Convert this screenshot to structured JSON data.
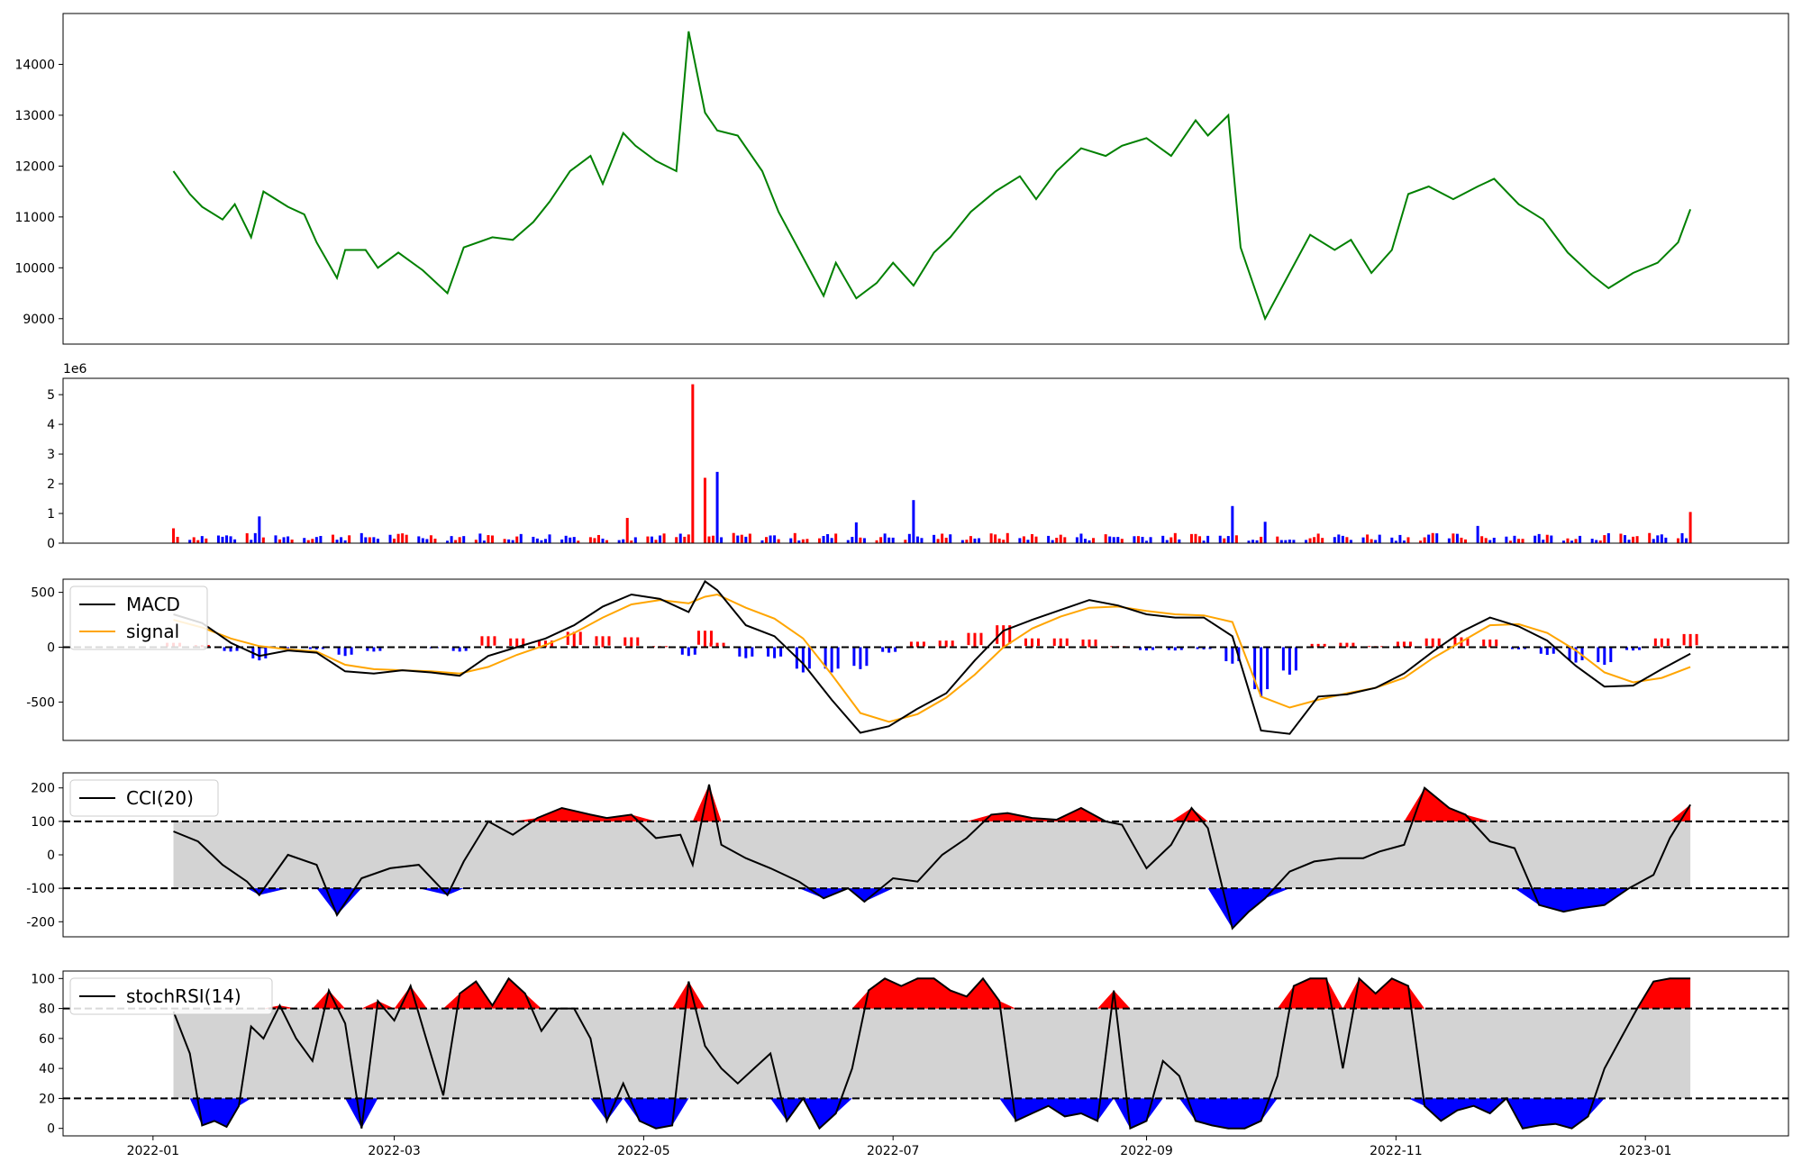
{
  "chart_data": [
    {
      "type": "line",
      "panel": "price",
      "yticks": [
        9000,
        10000,
        11000,
        12000,
        13000,
        14000
      ],
      "ylim": [
        8500,
        15000
      ],
      "color": "#008000",
      "series": [
        {
          "x": [
            "2022-01-06",
            "2022-01-10",
            "2022-01-13",
            "2022-01-18",
            "2022-01-21",
            "2022-01-25",
            "2022-01-28",
            "2022-02-03",
            "2022-02-07",
            "2022-02-10",
            "2022-02-15",
            "2022-02-17",
            "2022-02-22",
            "2022-02-25",
            "2022-03-02",
            "2022-03-08",
            "2022-03-14",
            "2022-03-18",
            "2022-03-25",
            "2022-03-30",
            "2022-04-04",
            "2022-04-08",
            "2022-04-13",
            "2022-04-18",
            "2022-04-21",
            "2022-04-26",
            "2022-04-29",
            "2022-05-04",
            "2022-05-09",
            "2022-05-12",
            "2022-05-16",
            "2022-05-19",
            "2022-05-24",
            "2022-05-30",
            "2022-06-03",
            "2022-06-09",
            "2022-06-14",
            "2022-06-17",
            "2022-06-22",
            "2022-06-27",
            "2022-07-01",
            "2022-07-06",
            "2022-07-11",
            "2022-07-15",
            "2022-07-20",
            "2022-07-26",
            "2022-08-01",
            "2022-08-05",
            "2022-08-10",
            "2022-08-16",
            "2022-08-22",
            "2022-08-26",
            "2022-09-01",
            "2022-09-07",
            "2022-09-13",
            "2022-09-16",
            "2022-09-21",
            "2022-09-24",
            "2022-09-30",
            "2022-10-05",
            "2022-10-11",
            "2022-10-17",
            "2022-10-21",
            "2022-10-26",
            "2022-10-31",
            "2022-11-04",
            "2022-11-09",
            "2022-11-15",
            "2022-11-21",
            "2022-11-25",
            "2022-12-01",
            "2022-12-07",
            "2022-12-13",
            "2022-12-19",
            "2022-12-23",
            "2022-12-29",
            "2023-01-04",
            "2023-01-09",
            "2023-01-12"
          ],
          "y": [
            11900,
            11450,
            11200,
            10950,
            11250,
            10600,
            11500,
            11200,
            11050,
            10500,
            9800,
            10350,
            10350,
            10000,
            10300,
            9950,
            9500,
            10400,
            10600,
            10550,
            10900,
            11300,
            11900,
            12200,
            11650,
            12650,
            12400,
            12100,
            11900,
            14650,
            13050,
            12700,
            12600,
            11900,
            11100,
            10200,
            9450,
            10100,
            9400,
            9700,
            10100,
            9650,
            10300,
            10600,
            11100,
            11500,
            11800,
            11350,
            11900,
            12350,
            12200,
            12400,
            12550,
            12200,
            12900,
            12600,
            13000,
            10400,
            9000,
            9750,
            10650,
            10350,
            10550,
            9900,
            10350,
            11450,
            11600,
            11350,
            11600,
            11750,
            11250,
            10950,
            10300,
            9850,
            9600,
            9900,
            10100,
            10500,
            11150
          ]
        }
      ]
    },
    {
      "type": "bar",
      "panel": "volume",
      "yticks": [
        0,
        1,
        2,
        3,
        4,
        5
      ],
      "scale_label": "1e6",
      "ylim": [
        0,
        5.55
      ],
      "colors": {
        "up": "#ff0000",
        "down": "#0000ff"
      },
      "peaks": [
        {
          "x": "2022-01-06",
          "value": 0.5,
          "dir": "up"
        },
        {
          "x": "2022-01-27",
          "value": 0.9,
          "dir": "down"
        },
        {
          "x": "2022-04-27",
          "value": 0.85,
          "dir": "up"
        },
        {
          "x": "2022-05-13",
          "value": 5.35,
          "dir": "up"
        },
        {
          "x": "2022-05-16",
          "value": 2.2,
          "dir": "up"
        },
        {
          "x": "2022-05-19",
          "value": 2.4,
          "dir": "down"
        },
        {
          "x": "2022-06-22",
          "value": 0.7,
          "dir": "down"
        },
        {
          "x": "2022-07-06",
          "value": 1.45,
          "dir": "down"
        },
        {
          "x": "2022-09-22",
          "value": 1.25,
          "dir": "down"
        },
        {
          "x": "2022-09-30",
          "value": 0.72,
          "dir": "down"
        },
        {
          "x": "2022-11-21",
          "value": 0.58,
          "dir": "down"
        },
        {
          "x": "2023-01-12",
          "value": 1.05,
          "dir": "up"
        }
      ],
      "baseline_range": [
        0.08,
        0.35
      ]
    },
    {
      "type": "line",
      "panel": "macd",
      "yticks": [
        -500,
        0,
        500
      ],
      "ylim": [
        -850,
        620
      ],
      "legend": [
        "MACD",
        "signal"
      ],
      "colors": {
        "macd": "#000000",
        "signal": "#ffa500",
        "hist_up": "#ff0000",
        "hist_down": "#0000ff"
      },
      "x": [
        "2022-01-06",
        "2022-01-13",
        "2022-01-20",
        "2022-01-27",
        "2022-02-03",
        "2022-02-10",
        "2022-02-17",
        "2022-02-24",
        "2022-03-03",
        "2022-03-10",
        "2022-03-17",
        "2022-03-24",
        "2022-03-31",
        "2022-04-07",
        "2022-04-14",
        "2022-04-21",
        "2022-04-28",
        "2022-05-05",
        "2022-05-12",
        "2022-05-16",
        "2022-05-19",
        "2022-05-26",
        "2022-06-02",
        "2022-06-09",
        "2022-06-16",
        "2022-06-23",
        "2022-06-30",
        "2022-07-07",
        "2022-07-14",
        "2022-07-21",
        "2022-07-28",
        "2022-08-04",
        "2022-08-11",
        "2022-08-18",
        "2022-08-25",
        "2022-09-01",
        "2022-09-08",
        "2022-09-15",
        "2022-09-22",
        "2022-09-29",
        "2022-10-06",
        "2022-10-13",
        "2022-10-20",
        "2022-10-27",
        "2022-11-03",
        "2022-11-10",
        "2022-11-17",
        "2022-11-24",
        "2022-12-01",
        "2022-12-08",
        "2022-12-15",
        "2022-12-22",
        "2022-12-29",
        "2023-01-05",
        "2023-01-12"
      ],
      "macd": [
        300,
        220,
        40,
        -80,
        -30,
        -50,
        -220,
        -240,
        -210,
        -230,
        -260,
        -80,
        0,
        80,
        200,
        370,
        480,
        440,
        320,
        600,
        520,
        200,
        100,
        -150,
        -480,
        -780,
        -720,
        -560,
        -420,
        -120,
        150,
        250,
        340,
        430,
        380,
        300,
        270,
        270,
        100,
        -760,
        -790,
        -450,
        -430,
        -370,
        -240,
        -40,
        140,
        270,
        190,
        60,
        -170,
        -360,
        -350,
        -200,
        -60
      ],
      "signal": [
        250,
        180,
        80,
        10,
        -20,
        -40,
        -160,
        -200,
        -210,
        -220,
        -240,
        -180,
        -70,
        20,
        130,
        270,
        390,
        430,
        400,
        460,
        480,
        360,
        260,
        80,
        -250,
        -600,
        -680,
        -610,
        -460,
        -250,
        0,
        170,
        280,
        360,
        370,
        330,
        300,
        290,
        230,
        -450,
        -550,
        -480,
        -420,
        -370,
        -280,
        -100,
        50,
        200,
        210,
        130,
        -30,
        -230,
        -320,
        -280,
        -180
      ],
      "hist": [
        40,
        20,
        -40,
        -120,
        -10,
        -20,
        -80,
        -40,
        0,
        -10,
        -40,
        100,
        80,
        60,
        140,
        100,
        90,
        10,
        -80,
        150,
        40,
        -100,
        -100,
        -230,
        -230,
        -200,
        -50,
        50,
        60,
        130,
        200,
        80,
        80,
        70,
        10,
        -30,
        -30,
        -20,
        -150,
        -450,
        -250,
        30,
        40,
        10,
        50,
        80,
        90,
        70,
        -20,
        -70,
        -140,
        -160,
        -30,
        80,
        120
      ]
    },
    {
      "type": "area",
      "panel": "cci",
      "yticks": [
        -200,
        -100,
        0,
        100,
        200
      ],
      "ylim": [
        -245,
        245
      ],
      "legend": [
        "CCI(20)"
      ],
      "thresholds": [
        100,
        -100
      ],
      "colors": {
        "line": "#000000",
        "band": "#d3d3d3",
        "over": "#ff0000",
        "under": "#0000ff"
      },
      "x": [
        "2022-01-06",
        "2022-01-12",
        "2022-01-18",
        "2022-01-24",
        "2022-01-27",
        "2022-02-03",
        "2022-02-10",
        "2022-02-15",
        "2022-02-21",
        "2022-02-28",
        "2022-03-07",
        "2022-03-14",
        "2022-03-18",
        "2022-03-24",
        "2022-03-30",
        "2022-04-05",
        "2022-04-11",
        "2022-04-18",
        "2022-04-22",
        "2022-04-28",
        "2022-05-04",
        "2022-05-10",
        "2022-05-13",
        "2022-05-17",
        "2022-05-20",
        "2022-05-26",
        "2022-06-01",
        "2022-06-08",
        "2022-06-14",
        "2022-06-20",
        "2022-06-24",
        "2022-07-01",
        "2022-07-07",
        "2022-07-13",
        "2022-07-19",
        "2022-07-25",
        "2022-07-29",
        "2022-08-04",
        "2022-08-10",
        "2022-08-16",
        "2022-08-22",
        "2022-08-26",
        "2022-09-01",
        "2022-09-07",
        "2022-09-12",
        "2022-09-16",
        "2022-09-22",
        "2022-09-26",
        "2022-09-30",
        "2022-10-06",
        "2022-10-12",
        "2022-10-18",
        "2022-10-24",
        "2022-10-28",
        "2022-11-03",
        "2022-11-08",
        "2022-11-14",
        "2022-11-18",
        "2022-11-24",
        "2022-11-30",
        "2022-12-06",
        "2022-12-12",
        "2022-12-16",
        "2022-12-22",
        "2022-12-28",
        "2023-01-03",
        "2023-01-07",
        "2023-01-12"
      ],
      "y": [
        70,
        40,
        -30,
        -80,
        -120,
        0,
        -30,
        -180,
        -70,
        -40,
        -30,
        -120,
        -20,
        100,
        60,
        110,
        140,
        120,
        110,
        120,
        50,
        60,
        -30,
        210,
        30,
        -10,
        -40,
        -80,
        -130,
        -100,
        -140,
        -70,
        -80,
        0,
        50,
        120,
        125,
        110,
        105,
        140,
        100,
        90,
        -40,
        30,
        140,
        80,
        -220,
        -170,
        -130,
        -50,
        -20,
        -10,
        -10,
        10,
        30,
        200,
        140,
        120,
        40,
        20,
        -150,
        -170,
        -160,
        -150,
        -100,
        -60,
        50,
        150
      ]
    },
    {
      "type": "area",
      "panel": "stochrsi",
      "yticks": [
        0,
        20,
        40,
        60,
        80,
        100
      ],
      "ylim": [
        -5,
        105
      ],
      "legend": [
        "stochRSI(14)"
      ],
      "thresholds": [
        80,
        20
      ],
      "colors": {
        "line": "#000000",
        "band": "#d3d3d3",
        "over": "#ff0000",
        "under": "#0000ff"
      },
      "x": [
        "2022-01-06",
        "2022-01-10",
        "2022-01-13",
        "2022-01-16",
        "2022-01-19",
        "2022-01-22",
        "2022-01-25",
        "2022-01-28",
        "2022-02-01",
        "2022-02-05",
        "2022-02-09",
        "2022-02-13",
        "2022-02-17",
        "2022-02-21",
        "2022-02-25",
        "2022-03-01",
        "2022-03-05",
        "2022-03-09",
        "2022-03-13",
        "2022-03-17",
        "2022-03-21",
        "2022-03-25",
        "2022-03-29",
        "2022-04-02",
        "2022-04-06",
        "2022-04-10",
        "2022-04-14",
        "2022-04-18",
        "2022-04-22",
        "2022-04-26",
        "2022-04-30",
        "2022-05-04",
        "2022-05-08",
        "2022-05-12",
        "2022-05-16",
        "2022-05-20",
        "2022-05-24",
        "2022-05-28",
        "2022-06-01",
        "2022-06-05",
        "2022-06-09",
        "2022-06-13",
        "2022-06-17",
        "2022-06-21",
        "2022-06-25",
        "2022-06-29",
        "2022-07-03",
        "2022-07-07",
        "2022-07-11",
        "2022-07-15",
        "2022-07-19",
        "2022-07-23",
        "2022-07-27",
        "2022-07-31",
        "2022-08-04",
        "2022-08-08",
        "2022-08-12",
        "2022-08-16",
        "2022-08-20",
        "2022-08-24",
        "2022-08-28",
        "2022-09-01",
        "2022-09-05",
        "2022-09-09",
        "2022-09-13",
        "2022-09-17",
        "2022-09-21",
        "2022-09-25",
        "2022-09-29",
        "2022-10-03",
        "2022-10-07",
        "2022-10-11",
        "2022-10-15",
        "2022-10-19",
        "2022-10-23",
        "2022-10-27",
        "2022-10-31",
        "2022-11-04",
        "2022-11-08",
        "2022-11-12",
        "2022-11-16",
        "2022-11-20",
        "2022-11-24",
        "2022-11-28",
        "2022-12-02",
        "2022-12-06",
        "2022-12-10",
        "2022-12-14",
        "2022-12-18",
        "2022-12-22",
        "2022-12-26",
        "2022-12-30",
        "2023-01-03",
        "2023-01-07",
        "2023-01-12"
      ],
      "y": [
        78,
        50,
        2,
        5,
        1,
        15,
        68,
        60,
        82,
        60,
        45,
        92,
        70,
        0,
        85,
        72,
        95,
        58,
        22,
        90,
        98,
        82,
        100,
        90,
        65,
        80,
        80,
        60,
        5,
        30,
        5,
        0,
        2,
        98,
        55,
        40,
        30,
        40,
        50,
        5,
        20,
        0,
        10,
        40,
        92,
        100,
        95,
        100,
        100,
        92,
        88,
        100,
        85,
        5,
        10,
        15,
        8,
        10,
        5,
        92,
        0,
        5,
        45,
        35,
        5,
        2,
        0,
        0,
        5,
        35,
        95,
        100,
        100,
        40,
        100,
        90,
        100,
        95,
        15,
        5,
        12,
        15,
        10,
        20,
        0,
        2,
        3,
        0,
        8,
        40,
        60,
        80,
        98,
        100,
        100
      ]
    }
  ],
  "xaxis": {
    "ticks": [
      "2022-01",
      "2022-03",
      "2022-05",
      "2022-07",
      "2022-09",
      "2022-11",
      "2023-01"
    ],
    "tick_dates": [
      "2022-01-01",
      "2022-03-01",
      "2022-05-01",
      "2022-07-01",
      "2022-09-01",
      "2022-11-01",
      "2023-01-01"
    ],
    "xlim": [
      "2021-12-10",
      "2023-02-05"
    ]
  }
}
